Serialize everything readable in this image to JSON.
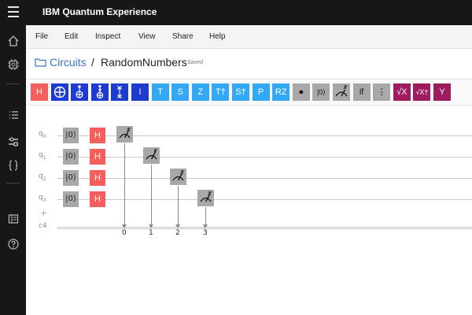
{
  "app": {
    "title": "IBM Quantum Experience"
  },
  "menu": [
    "File",
    "Edit",
    "Inspect",
    "View",
    "Share",
    "Help"
  ],
  "breadcrumb": {
    "parent": "Circuits",
    "separator": "/",
    "current": "RandomNumbers",
    "status": "Saved"
  },
  "sidenav": [
    "home-icon",
    "chip-icon",
    "list-icon",
    "circuit-composer-icon",
    "braces-icon",
    "notebook-icon",
    "help-icon"
  ],
  "palette": [
    {
      "label": "H",
      "icon": "h-gate",
      "color": "#f25f5c"
    },
    {
      "label": "⊕",
      "icon": "cnot-gate",
      "color": "#1e3bd1"
    },
    {
      "label": "",
      "icon": "toffoli-gate",
      "color": "#1e3bd1"
    },
    {
      "label": "",
      "icon": "toffoli-gate-2",
      "color": "#1e3bd1"
    },
    {
      "label": "",
      "icon": "swap-gate",
      "color": "#1e3bd1"
    },
    {
      "label": "I",
      "icon": "identity-gate",
      "color": "#1e3bd1"
    },
    {
      "label": "T",
      "icon": "t-gate",
      "color": "#33a8f5"
    },
    {
      "label": "S",
      "icon": "s-gate",
      "color": "#33a8f5"
    },
    {
      "label": "Z",
      "icon": "z-gate",
      "color": "#33a8f5"
    },
    {
      "label": "T†",
      "icon": "tdg-gate",
      "color": "#33a8f5"
    },
    {
      "label": "S†",
      "icon": "sdg-gate",
      "color": "#33a8f5"
    },
    {
      "label": "P",
      "icon": "p-gate",
      "color": "#33a8f5"
    },
    {
      "label": "RZ",
      "icon": "rz-gate",
      "color": "#33a8f5"
    },
    {
      "label": "●",
      "icon": "control-dot",
      "color": "#a8a8a8"
    },
    {
      "label": "|0⟩",
      "icon": "reset-gate",
      "color": "#a8a8a8"
    },
    {
      "label": "",
      "icon": "measure-gate",
      "color": "#a8a8a8"
    },
    {
      "label": "if",
      "icon": "if-gate",
      "color": "#a8a8a8"
    },
    {
      "label": "⋮",
      "icon": "barrier-gate",
      "color": "#a8a8a8"
    },
    {
      "label": "√X",
      "icon": "sx-gate",
      "color": "#9e1c5e"
    },
    {
      "label": "√X†",
      "icon": "sxdg-gate",
      "color": "#9e1c5e"
    },
    {
      "label": "Y",
      "icon": "y-gate",
      "color": "#9e1c5e"
    }
  ],
  "circuit": {
    "qubits": [
      {
        "name": "q",
        "index": "0"
      },
      {
        "name": "q",
        "index": "1"
      },
      {
        "name": "q",
        "index": "2"
      },
      {
        "name": "q",
        "index": "3"
      }
    ],
    "classical_label": "c4",
    "add_label": "+",
    "init_label": "|0⟩",
    "h_label": "H",
    "bits": [
      "0",
      "1",
      "2",
      "3"
    ]
  }
}
